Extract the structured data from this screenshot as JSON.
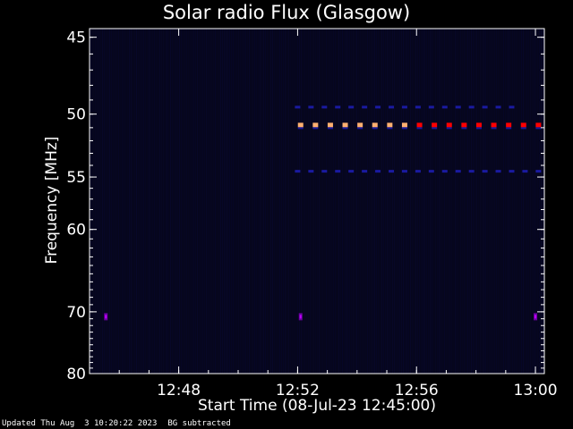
{
  "chart_data": {
    "type": "heatmap",
    "title": "Solar radio Flux (Glasgow)",
    "xlabel": "Start Time (08-Jul-23 12:45:00)",
    "ylabel": "Frequency [MHz]",
    "x_ticks": [
      "12:48",
      "12:52",
      "12:56",
      "13:00"
    ],
    "x_tick_minutes": [
      3,
      7,
      11,
      15
    ],
    "x_range_minutes": [
      0,
      15.3
    ],
    "y_ticks": [
      45,
      50,
      55,
      60,
      70,
      80
    ],
    "y_range": [
      44.5,
      80
    ],
    "y_scale": "reciprocal",
    "background_color": "#000000",
    "plot_background_color": "#06061c",
    "colormap": [
      "#0a0a4a",
      "#1a1aa0",
      "#6a00a0",
      "#ff0000",
      "#ffb070"
    ],
    "features": [
      {
        "name": "interference line ~50.8 MHz",
        "freq": 50.8,
        "minutes_from": 7.1,
        "minutes_to": 15.2,
        "intensity": "high"
      },
      {
        "name": "weak line ~49.5 MHz",
        "freq": 49.5,
        "minutes_from": 7.0,
        "minutes_to": 14.5,
        "intensity": "low"
      },
      {
        "name": "weak line ~54.5 MHz",
        "freq": 54.5,
        "minutes_from": 7.0,
        "minutes_to": 15.2,
        "intensity": "low"
      },
      {
        "name": "spots ~70.7 MHz",
        "freq": 70.7,
        "minutes": [
          0.55,
          7.1,
          15.0
        ],
        "intensity": "medium"
      }
    ]
  },
  "footer": {
    "updated": "Updated Thu Aug  3 10:20:22 2023",
    "note": "BG subtracted"
  }
}
